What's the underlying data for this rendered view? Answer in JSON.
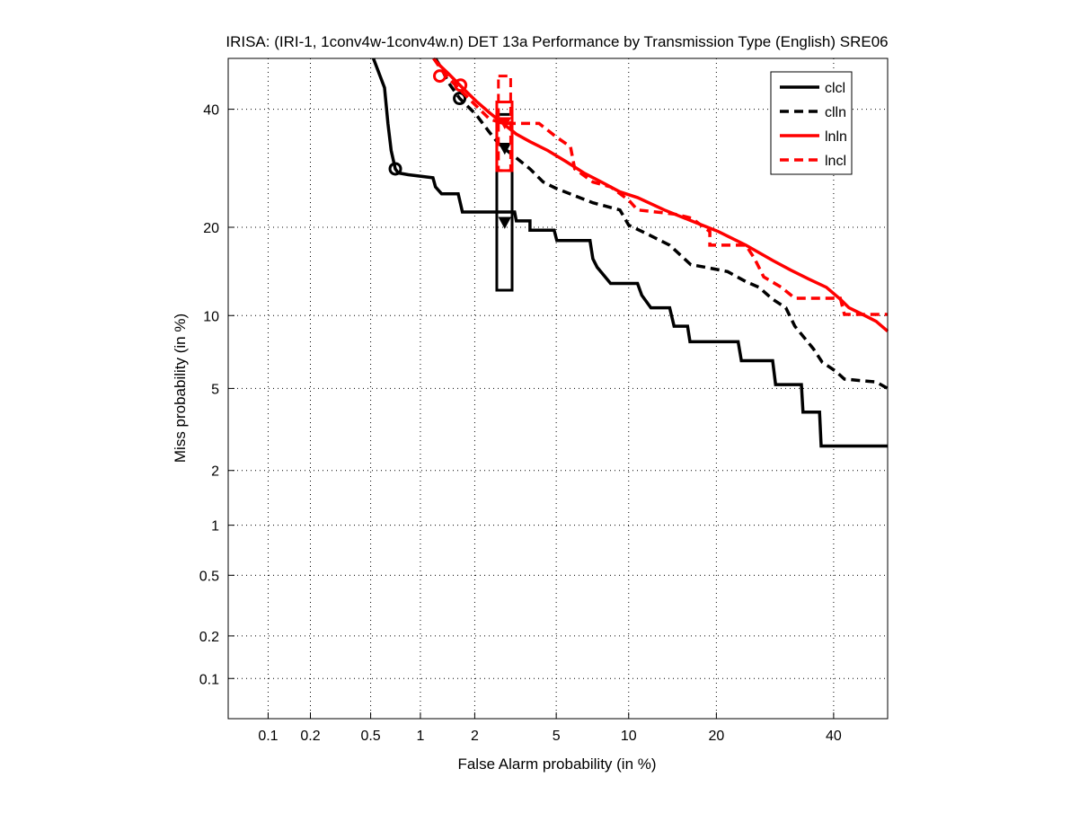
{
  "chart_data": {
    "type": "line",
    "title": "IRISA: (IRI-1, 1conv4w-1conv4w.n) DET 13a Performance by Transmission Type (English) SRE06",
    "xlabel": "False Alarm probability (in %)",
    "ylabel": "Miss probability (in %)",
    "scale": "normal-deviate (probit)",
    "xlim": [
      0.05,
      50.7
    ],
    "ylim": [
      0.05,
      50
    ],
    "grid": true,
    "legend_position": "top-right",
    "xticks": [
      0.1,
      0.2,
      0.5,
      1,
      2,
      5,
      10,
      20,
      40
    ],
    "xtick_labels": [
      "0.1",
      "0.2",
      "0.5",
      "1",
      "2",
      "5",
      "10",
      "20",
      "40"
    ],
    "yticks": [
      0.1,
      0.2,
      0.5,
      1,
      2,
      5,
      10,
      20,
      40
    ],
    "ytick_labels": [
      "0.1",
      "0.2",
      "0.5",
      "1",
      "2",
      "5",
      "10",
      "20",
      "40"
    ],
    "series": [
      {
        "name": "clcl",
        "color": "#000000",
        "dash": false,
        "points": [
          [
            0.52,
            50
          ],
          [
            0.58,
            46
          ],
          [
            0.61,
            44.2
          ],
          [
            0.64,
            37.3
          ],
          [
            0.67,
            32.3
          ],
          [
            0.71,
            29.1
          ],
          [
            0.74,
            28.4
          ],
          [
            0.85,
            28.1
          ],
          [
            1.18,
            27.6
          ],
          [
            1.22,
            26.1
          ],
          [
            1.32,
            25
          ],
          [
            1.63,
            25
          ],
          [
            1.72,
            22.2
          ],
          [
            3.19,
            22.2
          ],
          [
            3.25,
            20.9
          ],
          [
            3.78,
            20.9
          ],
          [
            3.78,
            19.6
          ],
          [
            4.89,
            19.6
          ],
          [
            5.03,
            18.2
          ],
          [
            7.0,
            18.2
          ],
          [
            7.2,
            15.9
          ],
          [
            7.5,
            14.9
          ],
          [
            8.5,
            13.1
          ],
          [
            10.8,
            13.1
          ],
          [
            11.2,
            11.9
          ],
          [
            12.1,
            10.7
          ],
          [
            14.1,
            10.7
          ],
          [
            14.6,
            9.1
          ],
          [
            16.2,
            9.1
          ],
          [
            16.5,
            7.9
          ],
          [
            23.2,
            7.9
          ],
          [
            23.7,
            6.6
          ],
          [
            28.8,
            6.6
          ],
          [
            29.3,
            5.2
          ],
          [
            33.9,
            5.2
          ],
          [
            34.2,
            3.9
          ],
          [
            37.3,
            3.9
          ],
          [
            37.6,
            2.67
          ],
          [
            50.7,
            2.67
          ]
        ],
        "min_dcf_point": [
          0.71,
          29.1
        ],
        "actual_dcf_point": [
          2.85,
          20.6
        ],
        "confidence_box": {
          "fa": [
            2.6,
            3.1
          ],
          "miss": [
            12.4,
            39
          ]
        }
      },
      {
        "name": "clln",
        "color": "#000000",
        "dash": true,
        "points": [
          [
            1.22,
            50
          ],
          [
            1.29,
            48.6
          ],
          [
            1.45,
            45.1
          ],
          [
            1.66,
            42.1
          ],
          [
            2.03,
            39
          ],
          [
            2.39,
            35.6
          ],
          [
            2.65,
            33.6
          ],
          [
            2.85,
            32.6
          ],
          [
            3.25,
            31
          ],
          [
            3.78,
            29.1
          ],
          [
            4.36,
            26.9
          ],
          [
            5.03,
            25.8
          ],
          [
            6.03,
            24.7
          ],
          [
            7.2,
            23.6
          ],
          [
            9.25,
            22.5
          ],
          [
            10.0,
            20.3
          ],
          [
            11.7,
            19.1
          ],
          [
            14.1,
            17.6
          ],
          [
            16.6,
            15.2
          ],
          [
            18.5,
            14.9
          ],
          [
            21.6,
            14.4
          ],
          [
            24.4,
            13.3
          ],
          [
            26.5,
            12.7
          ],
          [
            28.8,
            11.5
          ],
          [
            31.1,
            10.7
          ],
          [
            32.7,
            9.1
          ],
          [
            36.1,
            7.4
          ],
          [
            37.8,
            6.5
          ],
          [
            40.4,
            5.95
          ],
          [
            42.1,
            5.5
          ],
          [
            48.4,
            5.34
          ],
          [
            50.7,
            5.0
          ]
        ],
        "min_dcf_point": [
          1.66,
          42.1
        ],
        "actual_dcf_point": [
          2.85,
          32.6
        ]
      },
      {
        "name": "lnln",
        "color": "#ff0000",
        "dash": false,
        "points": [
          [
            1.19,
            50
          ],
          [
            1.29,
            48.6
          ],
          [
            1.45,
            46.9
          ],
          [
            1.72,
            44.2
          ],
          [
            2.03,
            41.6
          ],
          [
            2.39,
            39.3
          ],
          [
            2.79,
            37.3
          ],
          [
            3.25,
            35.3
          ],
          [
            3.78,
            33.9
          ],
          [
            4.58,
            32.3
          ],
          [
            5.51,
            30.4
          ],
          [
            6.6,
            28.4
          ],
          [
            7.8,
            26.9
          ],
          [
            9.25,
            25.3
          ],
          [
            10.8,
            24.4
          ],
          [
            13.5,
            22.5
          ],
          [
            16.7,
            20.9
          ],
          [
            20.3,
            19.4
          ],
          [
            24.4,
            17.6
          ],
          [
            28.8,
            15.7
          ],
          [
            31.9,
            14.6
          ],
          [
            35.2,
            13.6
          ],
          [
            38.6,
            12.7
          ],
          [
            41.3,
            11.5
          ],
          [
            43,
            10.7
          ],
          [
            45.7,
            10.1
          ],
          [
            48.4,
            9.5
          ],
          [
            50.7,
            8.7
          ]
        ],
        "min_dcf_point": [
          1.29,
          46.5
        ],
        "actual_dcf_point": [
          2.85,
          37.3
        ],
        "confidence_box": {
          "fa": [
            2.6,
            3.1
          ],
          "miss": [
            28.8,
            41.4
          ]
        }
      },
      {
        "name": "lncl",
        "color": "#ff0000",
        "dash": true,
        "points": [
          [
            1.19,
            50
          ],
          [
            1.37,
            46.9
          ],
          [
            1.72,
            43.3
          ],
          [
            2.03,
            40.7
          ],
          [
            2.39,
            38.1
          ],
          [
            2.79,
            37.3
          ],
          [
            4.17,
            37.3
          ],
          [
            5.03,
            34.7
          ],
          [
            5.78,
            33
          ],
          [
            6.03,
            29.1
          ],
          [
            7.2,
            26.9
          ],
          [
            8.5,
            26.1
          ],
          [
            10.0,
            24
          ],
          [
            10.8,
            22.5
          ],
          [
            14.6,
            21.9
          ],
          [
            16.7,
            21.3
          ],
          [
            19.1,
            19.4
          ],
          [
            19.1,
            17.6
          ],
          [
            24.4,
            17.6
          ],
          [
            25.8,
            15.9
          ],
          [
            27.3,
            13.8
          ],
          [
            30.3,
            12.7
          ],
          [
            32.7,
            11.6
          ],
          [
            41.3,
            11.6
          ],
          [
            42.1,
            10.1
          ],
          [
            50.7,
            10.1
          ]
        ],
        "min_dcf_point": [
          1.68,
          44.7
        ],
        "actual_dcf_point": [
          2.85,
          37.3
        ],
        "confidence_box": {
          "fa": [
            2.65,
            3.05
          ],
          "miss": [
            28.8,
            46.5
          ]
        }
      }
    ]
  }
}
